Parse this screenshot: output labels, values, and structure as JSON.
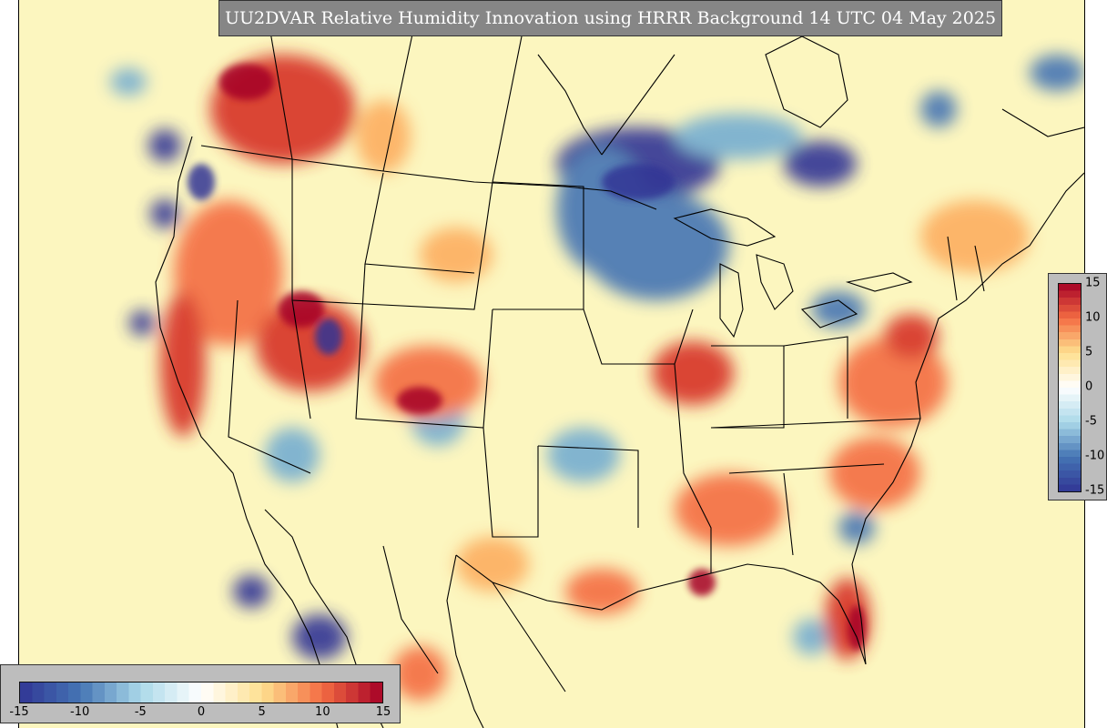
{
  "title": "UU2DVAR Relative Humidity Innovation using HRRR Background 14 UTC 04 May 2025",
  "colorbar": {
    "min": -15,
    "max": 15,
    "right_ticks": [
      "15",
      "10",
      "5",
      "0",
      "-5",
      "-10",
      "-15"
    ],
    "bottom_ticks": [
      "-15",
      "-10",
      "-5",
      "0",
      "5",
      "10",
      "15"
    ],
    "colors": {
      "neg_max": "#313695",
      "neg_mid": "#4575b4",
      "neg_low": "#abd9e9",
      "zero": "#ffffff",
      "pos_low": "#fee090",
      "pos_mid": "#f46d43",
      "pos_max": "#a50026"
    }
  },
  "map": {
    "background_color": "#fcf6bf",
    "boundary_color": "#000000"
  }
}
